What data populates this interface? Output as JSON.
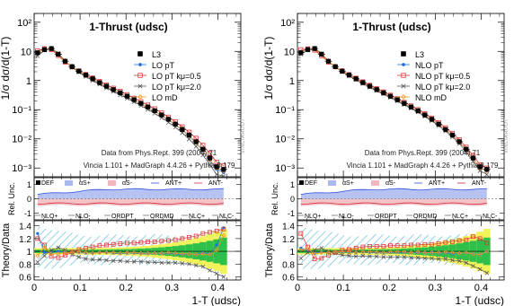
{
  "chart_data": [
    {
      "type": "line",
      "title": "1-Thrust (udsc)",
      "xlabel": "1-T (udsc)",
      "ylabel": "1/σ dσ/d(1-T)",
      "xlim": [
        0,
        0.45
      ],
      "ylim": [
        0.0005,
        200
      ],
      "yscale": "log",
      "x_ticks": [
        "0",
        "0.1",
        "0.2",
        "0.3",
        "0.4"
      ],
      "y_ticks": [
        "10⁻³",
        "10⁻²",
        "10⁻¹",
        "1",
        "10",
        "10²"
      ],
      "legend": [
        "L3",
        "LO pT",
        "LO pT kμ=0.5",
        "LO pT kμ=2.0",
        "LO mD"
      ],
      "legend_position": "top-right",
      "annotations": [
        "Data from Phys.Rept. 399 (2004) 71",
        "Vincia 1.101 + MadGraph 4.4.26 + Pythia 8.179"
      ],
      "watermark": "VINCIAROOT",
      "x": [
        0.0075,
        0.0225,
        0.0375,
        0.0525,
        0.0675,
        0.0825,
        0.0975,
        0.1125,
        0.1275,
        0.1425,
        0.1575,
        0.1725,
        0.1875,
        0.2025,
        0.2175,
        0.2325,
        0.2475,
        0.2625,
        0.2775,
        0.2925,
        0.3075,
        0.3225,
        0.3375,
        0.3525,
        0.3675,
        0.3825,
        0.3975,
        0.4125
      ],
      "series": [
        {
          "name": "L3",
          "values": [
            9.0,
            11.5,
            12.5,
            8.0,
            4.6,
            3.0,
            2.1,
            1.55,
            1.15,
            0.85,
            0.64,
            0.49,
            0.38,
            0.29,
            0.22,
            0.165,
            0.124,
            0.092,
            0.066,
            0.047,
            0.032,
            0.021,
            0.0135,
            0.008,
            0.0044,
            0.0022,
            0.0011,
            0.0009
          ]
        },
        {
          "name": "LO pT",
          "values": [
            8.8,
            12.0,
            12.2,
            7.9,
            4.5,
            2.9,
            2.05,
            1.5,
            1.1,
            0.82,
            0.62,
            0.47,
            0.36,
            0.28,
            0.21,
            0.158,
            0.118,
            0.088,
            0.063,
            0.045,
            0.03,
            0.0195,
            0.0125,
            0.0072,
            0.0038,
            0.0018,
            0.0009,
            0.0007
          ]
        },
        {
          "name": "LO pT kμ=0.5",
          "values": [
            10.5,
            12.5,
            11.5,
            7.2,
            4.3,
            2.95,
            2.15,
            1.62,
            1.23,
            0.93,
            0.71,
            0.55,
            0.43,
            0.33,
            0.25,
            0.19,
            0.145,
            0.108,
            0.078,
            0.056,
            0.039,
            0.026,
            0.017,
            0.0105,
            0.006,
            0.0032,
            0.0016,
            0.0012
          ]
        },
        {
          "name": "LO pT kμ=2.0",
          "values": [
            7.0,
            11.0,
            12.8,
            8.6,
            4.7,
            2.85,
            1.92,
            1.38,
            1.0,
            0.74,
            0.55,
            0.42,
            0.32,
            0.245,
            0.185,
            0.138,
            0.102,
            0.075,
            0.053,
            0.037,
            0.025,
            0.016,
            0.0098,
            0.0055,
            0.0028,
            0.0013,
            0.0006,
            0.0005
          ]
        },
        {
          "name": "LO mD",
          "values": [
            8.6,
            12.2,
            12.0,
            7.7,
            4.5,
            2.95,
            2.08,
            1.52,
            1.12,
            0.83,
            0.63,
            0.48,
            0.37,
            0.285,
            0.215,
            0.16,
            0.12,
            0.089,
            0.064,
            0.046,
            0.031,
            0.02,
            0.013,
            0.0075,
            0.004,
            0.0019,
            0.001,
            0.0008
          ]
        }
      ],
      "uncertainty_panel": {
        "ylabel": "Rel. Unc.",
        "y_ticks": [
          "1",
          "0",
          "-1"
        ],
        "legend": [
          "DEF",
          "αS+",
          "αS-",
          "ANT+",
          "ANT-",
          "NLO+",
          "NLO-",
          "ORDPT",
          "ORDMD",
          "NLC+",
          "NLC-"
        ],
        "colors": {
          "alphaS_plus": "#a9b8f0",
          "alphaS_minus": "#f2b6bc"
        }
      },
      "ratio_panel": {
        "ylabel": "Theory/Data",
        "ylim": [
          0.55,
          1.48
        ],
        "y_ticks": [
          "1.4",
          "1.2",
          "1",
          "0.8",
          "0.6"
        ],
        "ratio_lo_pt": [
          1.28,
          0.98,
          0.98,
          1.0,
          0.99,
          0.98,
          0.98,
          0.97,
          0.97,
          0.98,
          0.98,
          0.97,
          0.96,
          0.97,
          0.97,
          0.96,
          0.96,
          0.97,
          0.96,
          0.97,
          0.96,
          0.95,
          0.96,
          0.95,
          0.98,
          0.96,
          1.1,
          1.37
        ],
        "ratio_lo_pt_k05": [
          1.2,
          1.1,
          0.92,
          0.9,
          0.94,
          0.99,
          1.03,
          1.05,
          1.07,
          1.09,
          1.1,
          1.11,
          1.12,
          1.13,
          1.13,
          1.14,
          1.15,
          1.15,
          1.16,
          1.17,
          1.18,
          1.2,
          1.22,
          1.24,
          1.28,
          1.3,
          1.32,
          1.35
        ],
        "ratio_lo_pt_k20": [
          0.83,
          0.93,
          1.02,
          1.06,
          1.02,
          0.95,
          0.91,
          0.88,
          0.87,
          0.87,
          0.86,
          0.85,
          0.85,
          0.84,
          0.84,
          0.84,
          0.83,
          0.83,
          0.82,
          0.82,
          0.82,
          0.81,
          0.8,
          0.78,
          0.76,
          0.7,
          0.65,
          0.6
        ],
        "ratio_lo_md": [
          0.93,
          1.06,
          0.96,
          0.96,
          0.98,
          0.98,
          0.99,
          0.98,
          0.97,
          0.98,
          0.98,
          0.98,
          0.97,
          0.98,
          0.98,
          0.97,
          0.97,
          0.97,
          0.97,
          0.98,
          0.97,
          0.96,
          0.96,
          0.95,
          0.96,
          0.95,
          1.02,
          1.25
        ]
      }
    },
    {
      "type": "line",
      "title": "1-Thrust (udsc)",
      "xlabel": "1-T (udsc)",
      "ylabel": "1/σ dσ/d(1-T)",
      "xlim": [
        0,
        0.45
      ],
      "ylim": [
        0.0005,
        200
      ],
      "yscale": "log",
      "x_ticks": [
        "0",
        "0.1",
        "0.2",
        "0.3",
        "0.4"
      ],
      "y_ticks": [
        "10⁻³",
        "10⁻²",
        "10⁻¹",
        "1",
        "10",
        "10²"
      ],
      "legend": [
        "L3",
        "NLO pT",
        "NLO pT kμ=0.5",
        "NLO pT kμ=2.0",
        "NLO mD"
      ],
      "legend_position": "top-right",
      "annotations": [
        "Data from Phys.Rept. 399 (2004) 71",
        "Vincia 1.101 + MadGraph 4.4.26 + Pythia 8.179"
      ],
      "watermark": "VINCIAROOT",
      "x": [
        0.0075,
        0.0225,
        0.0375,
        0.0525,
        0.0675,
        0.0825,
        0.0975,
        0.1125,
        0.1275,
        0.1425,
        0.1575,
        0.1725,
        0.1875,
        0.2025,
        0.2175,
        0.2325,
        0.2475,
        0.2625,
        0.2775,
        0.2925,
        0.3075,
        0.3225,
        0.3375,
        0.3525,
        0.3675,
        0.3825,
        0.3975,
        0.4125
      ],
      "series": [
        {
          "name": "L3",
          "values": [
            9.0,
            11.5,
            12.5,
            8.0,
            4.6,
            3.0,
            2.1,
            1.55,
            1.15,
            0.85,
            0.64,
            0.49,
            0.38,
            0.29,
            0.22,
            0.165,
            0.124,
            0.092,
            0.066,
            0.047,
            0.032,
            0.021,
            0.0135,
            0.008,
            0.0044,
            0.0022,
            0.0011,
            0.0009
          ]
        },
        {
          "name": "NLO pT",
          "values": [
            9.5,
            11.9,
            12.1,
            7.9,
            4.5,
            2.95,
            2.07,
            1.52,
            1.13,
            0.84,
            0.63,
            0.48,
            0.37,
            0.285,
            0.215,
            0.162,
            0.121,
            0.09,
            0.065,
            0.046,
            0.031,
            0.0205,
            0.013,
            0.0078,
            0.0043,
            0.0021,
            0.001,
            0.0008
          ]
        },
        {
          "name": "NLO pT kμ=0.5",
          "values": [
            11.5,
            12.3,
            11.0,
            7.1,
            4.3,
            2.95,
            2.15,
            1.6,
            1.21,
            0.91,
            0.69,
            0.53,
            0.41,
            0.315,
            0.24,
            0.18,
            0.136,
            0.101,
            0.073,
            0.052,
            0.036,
            0.024,
            0.0155,
            0.0094,
            0.0052,
            0.0027,
            0.0013,
            0.001
          ]
        },
        {
          "name": "NLO pT kμ=2.0",
          "values": [
            8.0,
            11.3,
            12.7,
            8.4,
            4.6,
            2.9,
            1.98,
            1.44,
            1.06,
            0.79,
            0.59,
            0.45,
            0.345,
            0.265,
            0.2,
            0.15,
            0.112,
            0.083,
            0.059,
            0.042,
            0.028,
            0.0185,
            0.0116,
            0.0068,
            0.0036,
            0.0017,
            0.0008,
            0.0006
          ]
        },
        {
          "name": "NLO mD",
          "values": [
            9.2,
            12.0,
            12.0,
            7.8,
            4.5,
            2.96,
            2.08,
            1.53,
            1.13,
            0.84,
            0.635,
            0.485,
            0.372,
            0.287,
            0.217,
            0.163,
            0.122,
            0.091,
            0.065,
            0.046,
            0.0315,
            0.0207,
            0.0132,
            0.0078,
            0.0043,
            0.0021,
            0.001,
            0.0008
          ]
        }
      ],
      "uncertainty_panel": {
        "ylabel": "Rel. Unc.",
        "y_ticks": [
          "1",
          "0",
          "-1"
        ],
        "legend": [
          "DEF",
          "αS+",
          "αS-",
          "ANT+",
          "ANT-",
          "NLO+",
          "NLO-",
          "ORDPT",
          "ORDMD",
          "NLC+",
          "NLC-"
        ],
        "colors": {
          "alphaS_plus": "#a9b8f0",
          "alphaS_minus": "#f2b6bc"
        }
      },
      "ratio_panel": {
        "ylabel": "Theory/Data",
        "ylim": [
          0.55,
          1.48
        ],
        "y_ticks": [
          "1.4",
          "1.2",
          "1",
          "0.8",
          "0.6"
        ],
        "ratio_lo_pt": [
          1.05,
          1.02,
          0.97,
          0.99,
          0.98,
          0.98,
          0.99,
          0.98,
          0.98,
          0.99,
          0.98,
          0.98,
          0.97,
          0.98,
          0.98,
          0.98,
          0.98,
          0.98,
          0.98,
          0.98,
          0.97,
          0.98,
          0.96,
          0.97,
          0.98,
          0.96,
          0.95,
          1.0
        ],
        "ratio_lo_pt_k05": [
          1.28,
          1.07,
          0.88,
          0.89,
          0.94,
          0.98,
          1.02,
          1.03,
          1.05,
          1.07,
          1.08,
          1.08,
          1.08,
          1.09,
          1.09,
          1.09,
          1.1,
          1.1,
          1.11,
          1.11,
          1.12,
          1.14,
          1.15,
          1.17,
          1.18,
          1.23,
          1.2,
          1.13
        ],
        "ratio_lo_pt_k20": [
          0.89,
          0.98,
          1.02,
          1.05,
          1.0,
          0.97,
          0.94,
          0.93,
          0.92,
          0.93,
          0.92,
          0.92,
          0.91,
          0.91,
          0.91,
          0.91,
          0.9,
          0.9,
          0.89,
          0.89,
          0.88,
          0.88,
          0.86,
          0.85,
          0.82,
          0.77,
          0.72,
          0.66
        ],
        "ratio_lo_md": [
          1.02,
          1.04,
          0.96,
          0.98,
          0.98,
          0.99,
          0.99,
          0.99,
          0.98,
          0.99,
          0.99,
          0.99,
          0.98,
          0.99,
          0.99,
          0.99,
          0.98,
          0.99,
          0.98,
          0.98,
          0.98,
          0.99,
          0.98,
          0.97,
          0.98,
          0.96,
          0.95,
          1.0
        ]
      }
    }
  ]
}
